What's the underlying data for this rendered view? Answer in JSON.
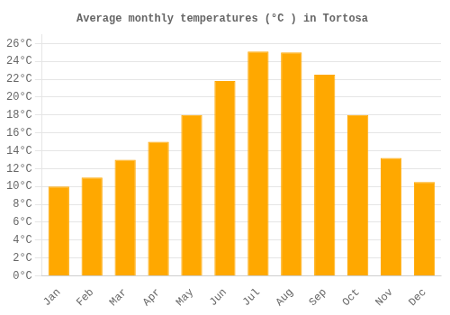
{
  "chart_data": {
    "type": "bar",
    "title": "Average monthly temperatures (°C ) in Tortosa",
    "categories": [
      "Jan",
      "Feb",
      "Mar",
      "Apr",
      "May",
      "Jun",
      "Jul",
      "Aug",
      "Sep",
      "Oct",
      "Nov",
      "Dec"
    ],
    "values": [
      10.0,
      11.0,
      13.0,
      15.0,
      18.0,
      21.8,
      25.1,
      25.0,
      22.5,
      18.0,
      13.2,
      10.5
    ],
    "color": "#FFA800",
    "ylim": [
      0,
      27
    ],
    "yticks": [
      {
        "value": 0,
        "label": "0°C"
      },
      {
        "value": 2,
        "label": "2°C"
      },
      {
        "value": 4,
        "label": "4°C"
      },
      {
        "value": 6,
        "label": "6°C"
      },
      {
        "value": 8,
        "label": "8°C"
      },
      {
        "value": 10,
        "label": "10°C"
      },
      {
        "value": 12,
        "label": "12°C"
      },
      {
        "value": 14,
        "label": "14°C"
      },
      {
        "value": 16,
        "label": "16°C"
      },
      {
        "value": 18,
        "label": "18°C"
      },
      {
        "value": 20,
        "label": "20°C"
      },
      {
        "value": 22,
        "label": "22°C"
      },
      {
        "value": 24,
        "label": "24°C"
      },
      {
        "value": 26,
        "label": "26°C"
      }
    ],
    "grid": true
  }
}
